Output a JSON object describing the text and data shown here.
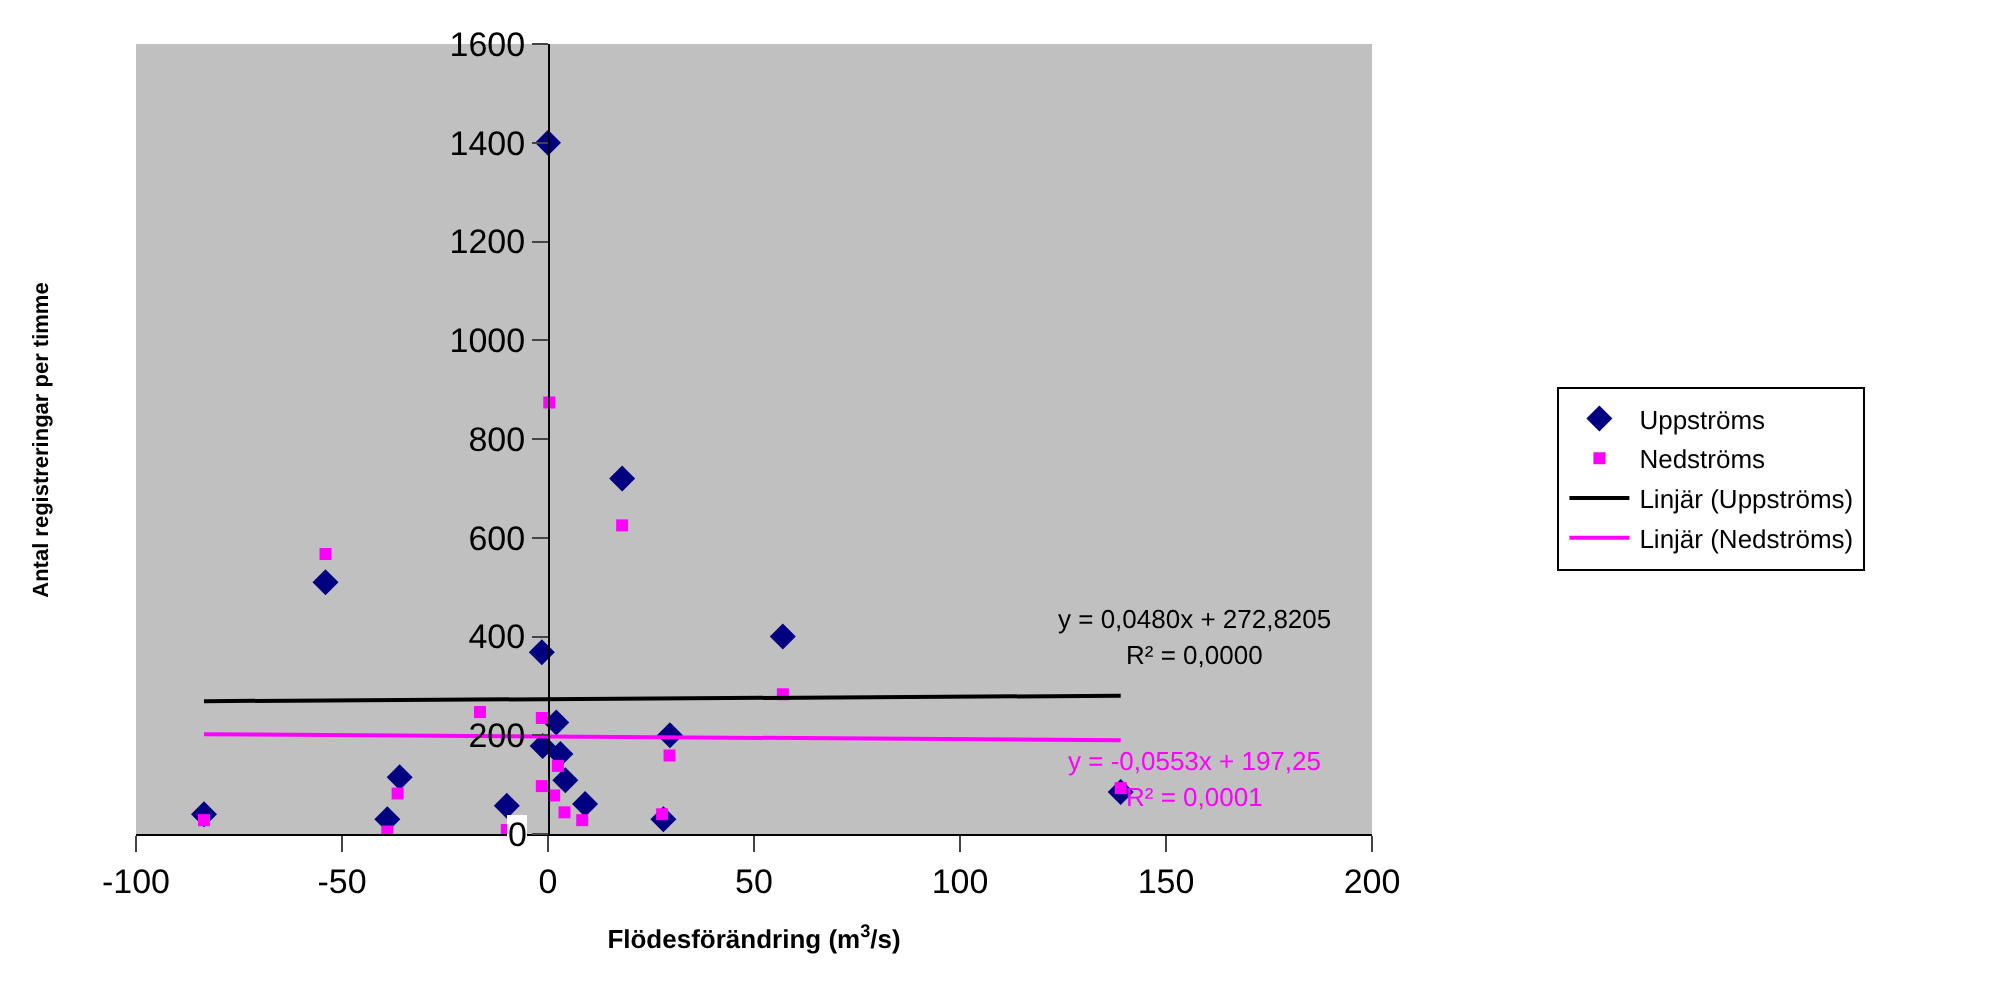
{
  "chart_data": {
    "type": "scatter",
    "xlabel": "Flödesförändring (m$^{3}$/s)",
    "ylabel": "Antal registreringar per timme",
    "xlim": [
      -100,
      200
    ],
    "xticks": [
      -100,
      -50,
      0,
      50,
      100,
      150,
      200
    ],
    "ylim": [
      0,
      1600
    ],
    "yticks": [
      0,
      200,
      400,
      600,
      800,
      1000,
      1200,
      1400,
      1600
    ],
    "grid": false,
    "legend": "right",
    "series": [
      {
        "name": "Uppströms",
        "color": "#000080",
        "marker": "diamond",
        "x": [
          -83.5,
          -54,
          -39,
          -36,
          -10,
          -1.5,
          -1.3,
          0,
          2,
          3,
          4.2,
          9,
          18,
          28,
          29.6,
          57,
          139
        ],
        "values": [
          40,
          510,
          30,
          115,
          57,
          368,
          178,
          1400,
          226,
          162,
          109,
          61,
          720,
          30,
          200,
          400,
          85
        ]
      },
      {
        "name": "Nedströms",
        "color": "#ff00ff",
        "marker": "square",
        "x": [
          -83.5,
          -54,
          -39,
          -36.5,
          -16.5,
          -10,
          -1.5,
          -1.5,
          0.3,
          1.5,
          2.4,
          4,
          8.3,
          18,
          27.7,
          29.5,
          57,
          139
        ],
        "values": [
          28,
          567,
          5,
          82,
          247,
          8,
          235,
          97,
          874,
          78,
          138,
          44,
          28,
          625,
          40,
          159,
          283,
          93
        ]
      },
      {
        "name": "Linjär (Uppströms)",
        "type": "line",
        "color": "#000000",
        "marker": "none",
        "x": [
          -83.5,
          139
        ],
        "values": [
          269,
          280
        ]
      },
      {
        "name": "Linjär (Nedströms)",
        "type": "line",
        "color": "#ff00ff",
        "marker": "none",
        "x": [
          -83.5,
          139
        ],
        "values": [
          202,
          190
        ]
      }
    ],
    "annotations": [
      "y = 0,0480x + 272,8205",
      "R² = 0,0000",
      "y = -0,0553x + 197,25",
      "R² = 0,0001"
    ]
  }
}
